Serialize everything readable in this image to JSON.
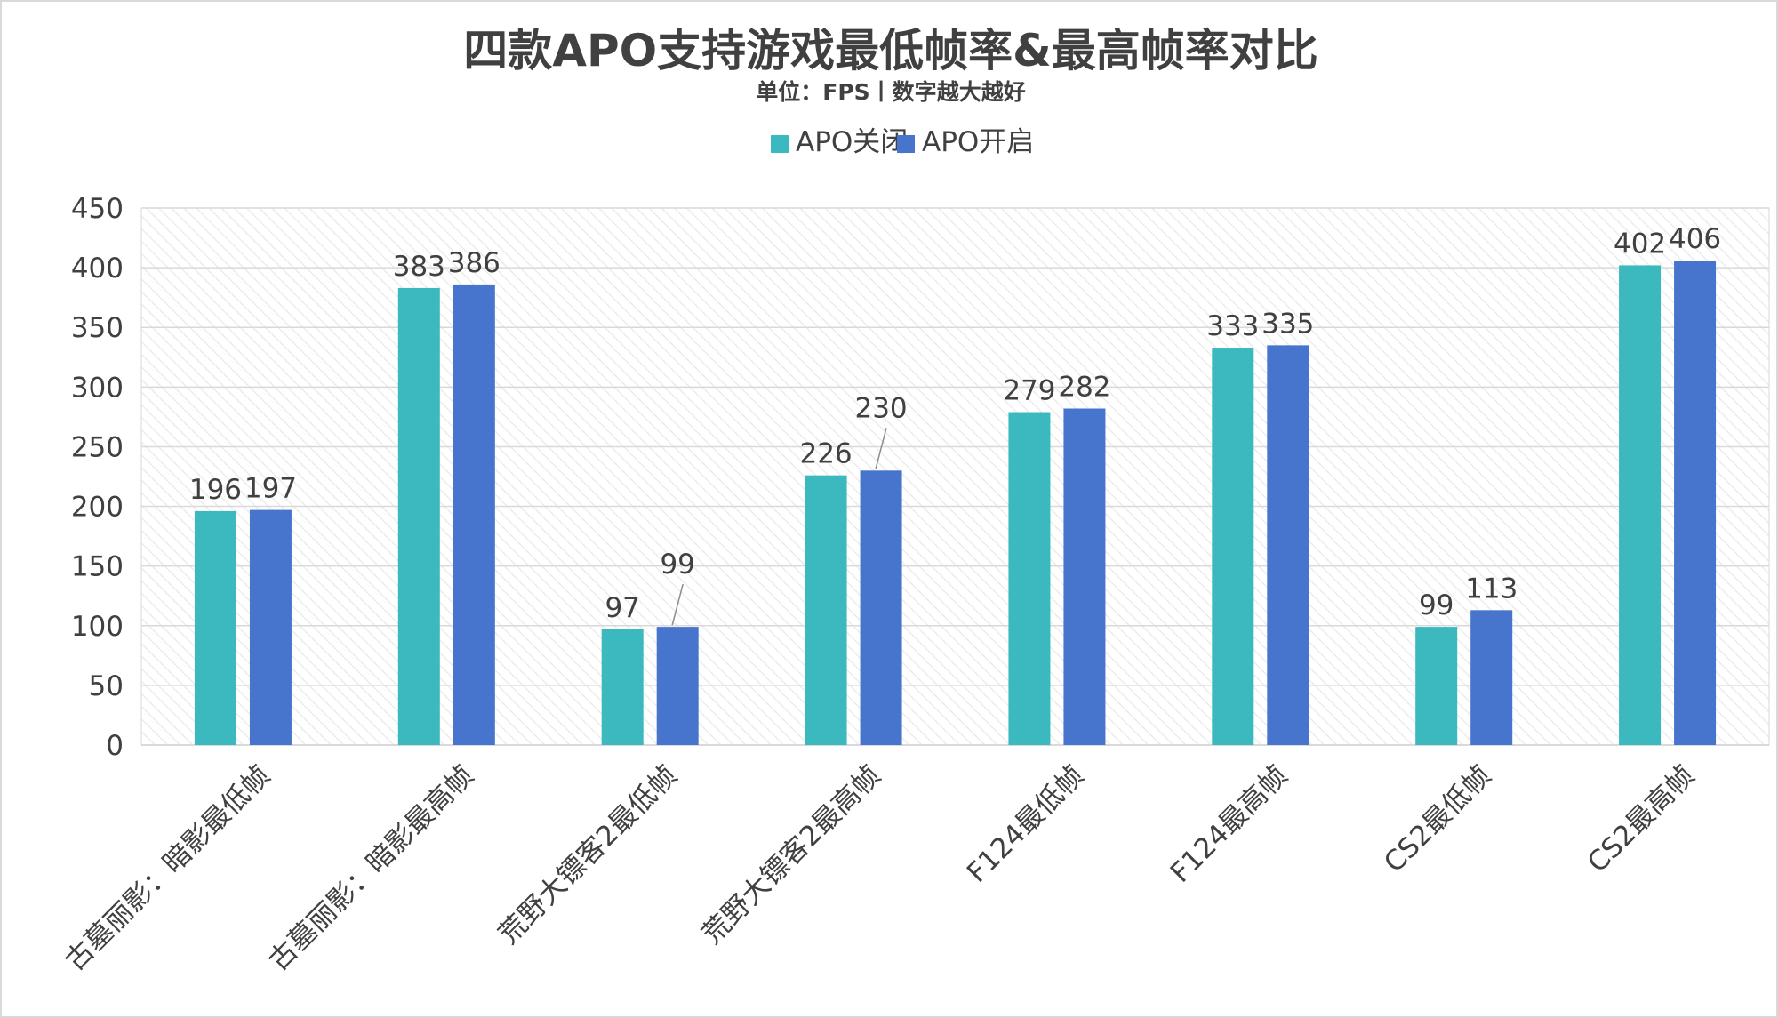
{
  "chart_data": {
    "type": "bar",
    "title": "四款APO支持游戏最低帧率&最高帧率对比",
    "subtitle": "单位：FPS丨数字越大越好",
    "categories": [
      "古墓丽影：暗影最低帧",
      "古墓丽影：暗影最高帧",
      "荒野大镖客2最低帧",
      "荒野大镖客2最高帧",
      "F124最低帧",
      "F124最高帧",
      "CS2最低帧",
      "CS2最高帧"
    ],
    "series": [
      {
        "name": "APO关闭",
        "color": "#3bb9bf",
        "values": [
          196,
          383,
          97,
          226,
          279,
          333,
          99,
          402
        ]
      },
      {
        "name": "APO开启",
        "color": "#4774cc",
        "values": [
          197,
          386,
          99,
          230,
          282,
          335,
          113,
          406
        ]
      }
    ],
    "ylim": [
      0,
      450
    ],
    "yticks": [
      0,
      50,
      100,
      150,
      200,
      250,
      300,
      350,
      400,
      450
    ],
    "grid": true,
    "legend_position": "top-center",
    "xlabel": "",
    "ylabel": ""
  }
}
